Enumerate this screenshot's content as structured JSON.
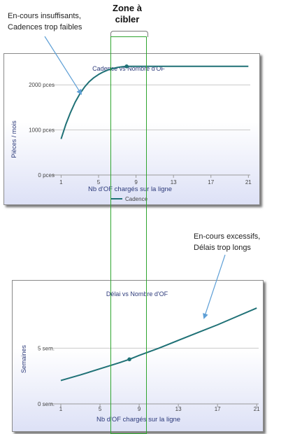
{
  "annotations": {
    "top_left": [
      "En-cours insuffisants,",
      "Cadences trop faibles"
    ],
    "zone": [
      "Zone à",
      "cibler"
    ],
    "bottom_right": [
      "En-cours excessifs,",
      "Délais trop longs"
    ]
  },
  "colors": {
    "series": "#1f7176",
    "grid": "#c8c8c8",
    "zone": "#2fa52f",
    "title_text": "#2c3a7a",
    "axis_text": "#2c3a7a"
  },
  "chart_data": [
    {
      "type": "line",
      "title": "Cadence vs Nombre d'OF",
      "xlabel": "Nb d'OF chargés sur la ligne",
      "ylabel": "Pièces / mois",
      "xlim": [
        0,
        21.2
      ],
      "ylim": [
        0,
        2500
      ],
      "xticks": [
        1,
        5,
        9,
        13,
        17,
        21
      ],
      "x_tick_labels": [
        "1",
        "5",
        "9",
        "13",
        "17",
        "21"
      ],
      "yticks": [
        0,
        1000,
        2000
      ],
      "y_tick_labels": [
        "0 pces",
        "1000 pces",
        "2000 pces"
      ],
      "grid": "horizontal",
      "legend": "bottom",
      "series": [
        {
          "name": "Cadence",
          "x": [
            1,
            1.5,
            2,
            2.5,
            3,
            3.5,
            4,
            4.5,
            5,
            5.5,
            6,
            6.5,
            7,
            7.5,
            8,
            9,
            10,
            11,
            12,
            13,
            14,
            15,
            16,
            17,
            18,
            19,
            20,
            21
          ],
          "y": [
            800,
            1120,
            1385,
            1615,
            1800,
            1950,
            2070,
            2160,
            2230,
            2285,
            2330,
            2360,
            2385,
            2400,
            2410,
            2410,
            2410,
            2410,
            2410,
            2410,
            2410,
            2410,
            2410,
            2410,
            2410,
            2410,
            2410,
            2410
          ]
        }
      ],
      "highlight_points": [
        {
          "x": 8,
          "y": 2410
        }
      ]
    },
    {
      "type": "line",
      "title": "Délai vs Nombre d'OF",
      "xlabel": "Nb d'OF chargés sur la ligne",
      "ylabel": "Semaines",
      "xlim": [
        0,
        21.2
      ],
      "ylim": [
        0,
        10.3
      ],
      "xticks": [
        1,
        5,
        9,
        13,
        17,
        21
      ],
      "x_tick_labels": [
        "1",
        "5",
        "9",
        "13",
        "17",
        "21"
      ],
      "yticks": [
        0,
        5
      ],
      "y_tick_labels": [
        "0 sem.",
        "5 sem."
      ],
      "grid": "horizontal",
      "series": [
        {
          "name": "Délai",
          "x": [
            1,
            3,
            5,
            7,
            8,
            9,
            11,
            13,
            15,
            17,
            19,
            21
          ],
          "y": [
            2.1,
            2.6,
            3.15,
            3.7,
            4.0,
            4.35,
            5.0,
            5.7,
            6.4,
            7.1,
            7.85,
            8.6
          ]
        }
      ],
      "highlight_points": [
        {
          "x": 8,
          "y": 4.0
        }
      ]
    }
  ]
}
